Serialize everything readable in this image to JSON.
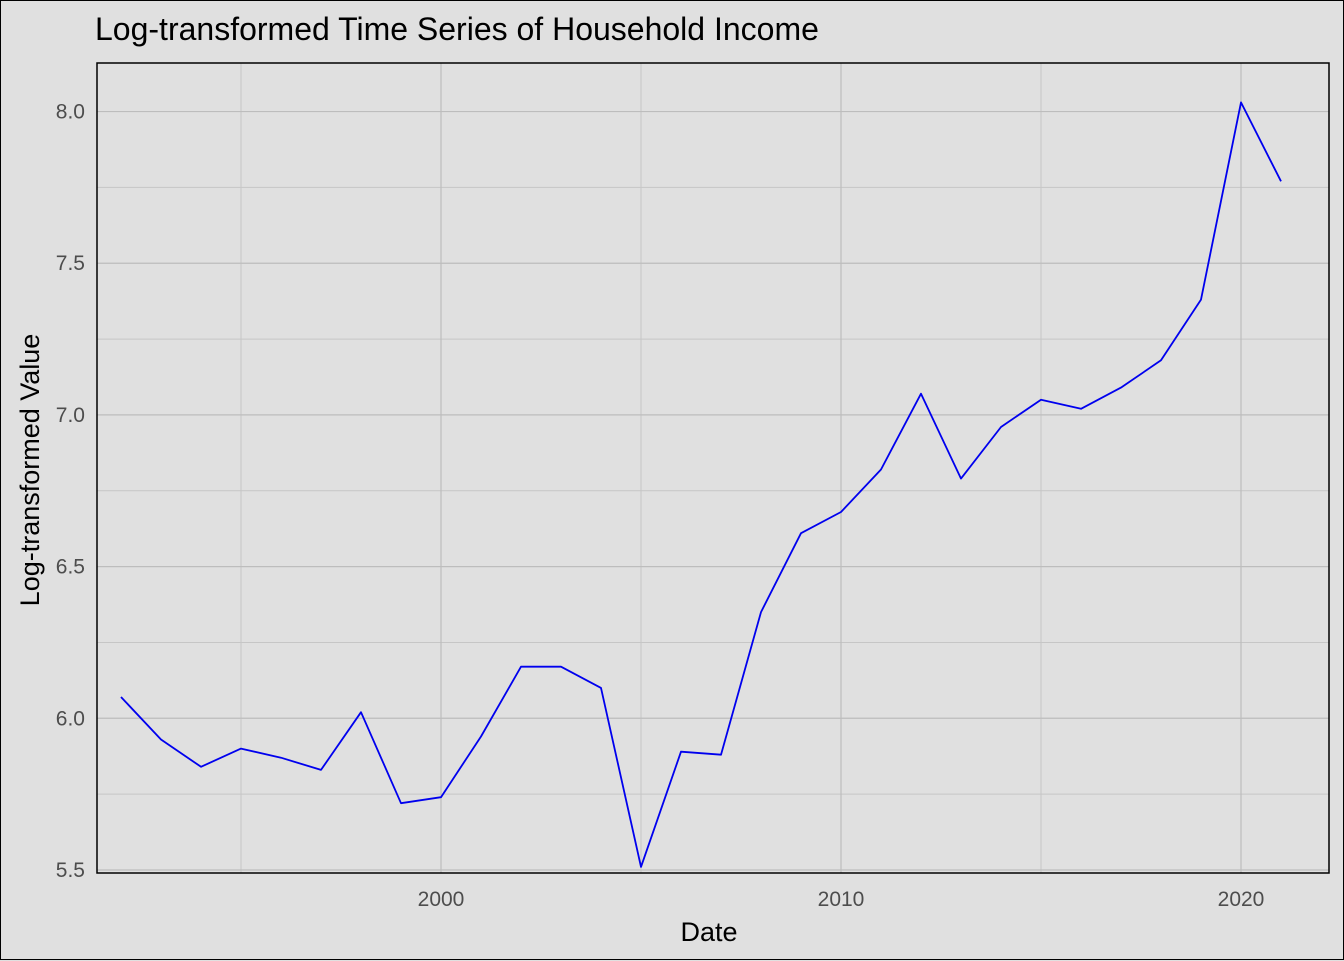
{
  "title": "Log-transformed Time Series of Household Income",
  "chart_data": {
    "type": "line",
    "title": "Log-transformed Time Series of Household Income",
    "xlabel": "Date",
    "ylabel": "Log-transformed Value",
    "x_ticks": [
      2000,
      2010,
      2020
    ],
    "y_ticks": [
      "5.5",
      "6.0",
      "6.5",
      "7.0",
      "7.5",
      "8.0"
    ],
    "xlim": [
      1991.4,
      2022.2
    ],
    "ylim": [
      5.49,
      8.16
    ],
    "grid": true,
    "line_color": "#0000ee",
    "series": [
      {
        "x": [
          1992,
          1993,
          1994,
          1995,
          1996,
          1997,
          1998,
          1999,
          2000,
          2001,
          2002,
          2003,
          2004,
          2005,
          2006,
          2007,
          2008,
          2009,
          2010,
          2011,
          2012,
          2013,
          2014,
          2015,
          2016,
          2017,
          2018,
          2019,
          2020,
          2021
        ],
        "y": [
          6.07,
          5.93,
          5.84,
          5.9,
          5.87,
          5.83,
          6.02,
          5.72,
          5.74,
          5.94,
          6.17,
          6.17,
          6.1,
          5.51,
          5.89,
          5.88,
          6.35,
          6.61,
          6.68,
          6.82,
          7.07,
          6.79,
          6.96,
          7.05,
          7.02,
          7.09,
          7.18,
          7.38,
          8.03,
          7.77
        ]
      }
    ]
  }
}
